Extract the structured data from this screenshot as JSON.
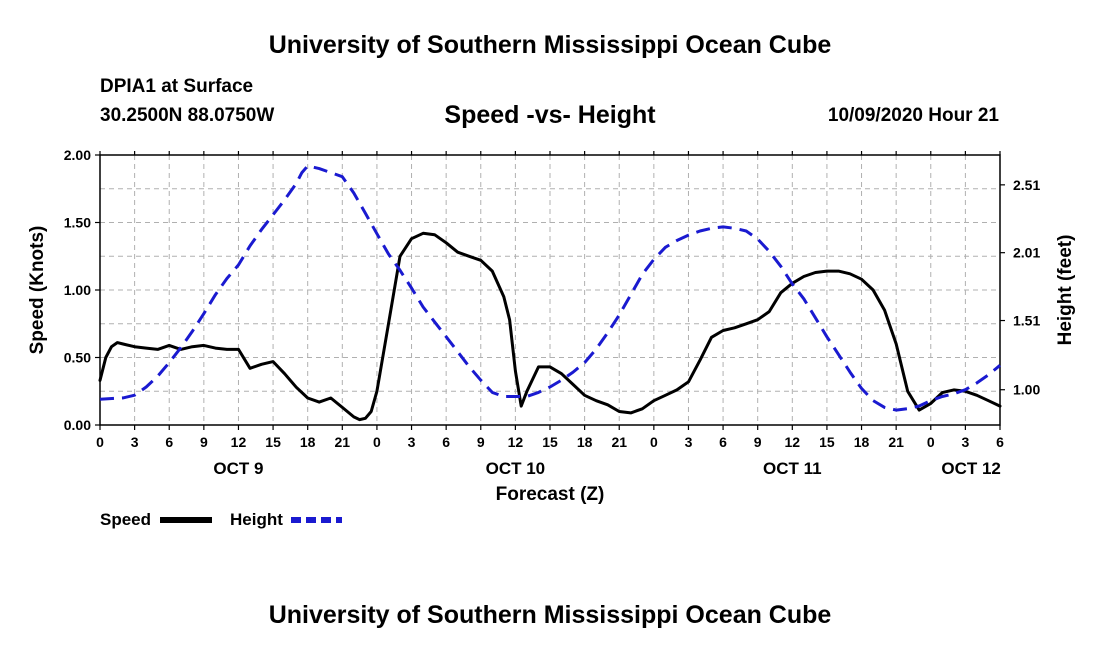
{
  "header": {
    "title": "University of Southern Mississippi Ocean Cube",
    "station": "DPIA1 at Surface",
    "coords": "30.2500N 88.0750W",
    "subtitle": "Speed -vs- Height",
    "datetime": "10/09/2020 Hour 21"
  },
  "footer": {
    "title": "University of Southern Mississippi Ocean Cube"
  },
  "legend": {
    "speed_label": "Speed",
    "height_label": "Height"
  },
  "colors": {
    "speed": "#000000",
    "height": "#1a1ad0",
    "grid": "#b0b0b0"
  },
  "chart_data": {
    "type": "line",
    "title": "Speed -vs- Height",
    "xlabel": "Forecast (Z)",
    "ylabel": "Speed (Knots)",
    "y2label": "Height (feet)",
    "xlim": [
      0,
      78
    ],
    "ylim": [
      0,
      2.0
    ],
    "y2lim": [
      0.74,
      2.73
    ],
    "x_tick_labels": [
      "0",
      "3",
      "6",
      "9",
      "12",
      "15",
      "18",
      "21",
      "0",
      "3",
      "6",
      "9",
      "12",
      "15",
      "18",
      "21",
      "0",
      "3",
      "6",
      "9",
      "12",
      "15",
      "18",
      "21",
      "0",
      "3",
      "6"
    ],
    "y_ticks": [
      "0.00",
      "0.50",
      "1.00",
      "1.50",
      "2.00"
    ],
    "y2_ticks": [
      "1.00",
      "1.51",
      "2.01",
      "2.51"
    ],
    "y2_tick_values": [
      1.0,
      1.51,
      2.01,
      2.51
    ],
    "day_labels": [
      {
        "label": "OCT 9",
        "x": 12
      },
      {
        "label": "OCT 10",
        "x": 36
      },
      {
        "label": "OCT 11",
        "x": 60
      },
      {
        "label": "OCT 12",
        "x": 75.5
      }
    ],
    "grid": true,
    "series": [
      {
        "name": "Speed",
        "axis": "left",
        "style": "solid",
        "x": [
          0,
          0.5,
          1,
          1.5,
          2,
          3,
          4,
          5,
          6,
          7,
          8,
          9,
          10,
          11,
          12,
          13,
          14,
          15,
          16,
          17,
          18,
          19,
          20,
          21,
          22,
          22.5,
          23,
          23.5,
          24,
          25,
          26,
          27,
          28,
          29,
          30,
          31,
          32,
          33,
          34,
          35,
          35.5,
          36,
          36.5,
          37,
          38,
          39,
          40,
          41,
          42,
          43,
          44,
          45,
          46,
          47,
          48,
          49,
          50,
          51,
          52,
          53,
          54,
          55,
          56,
          57,
          58,
          59,
          60,
          61,
          62,
          63,
          64,
          65,
          66,
          67,
          68,
          69,
          70,
          71,
          72,
          73,
          74,
          75,
          76,
          77,
          78
        ],
        "values": [
          0.33,
          0.5,
          0.58,
          0.61,
          0.6,
          0.58,
          0.57,
          0.56,
          0.59,
          0.56,
          0.58,
          0.59,
          0.57,
          0.56,
          0.56,
          0.42,
          0.45,
          0.47,
          0.38,
          0.28,
          0.2,
          0.17,
          0.2,
          0.13,
          0.06,
          0.04,
          0.05,
          0.1,
          0.25,
          0.75,
          1.25,
          1.38,
          1.42,
          1.41,
          1.35,
          1.28,
          1.25,
          1.22,
          1.14,
          0.95,
          0.78,
          0.4,
          0.14,
          0.25,
          0.43,
          0.43,
          0.38,
          0.3,
          0.22,
          0.18,
          0.15,
          0.1,
          0.09,
          0.12,
          0.18,
          0.22,
          0.26,
          0.32,
          0.48,
          0.65,
          0.7,
          0.72,
          0.75,
          0.78,
          0.84,
          0.98,
          1.05,
          1.1,
          1.13,
          1.14,
          1.14,
          1.12,
          1.08,
          1.0,
          0.85,
          0.6,
          0.25,
          0.11,
          0.16,
          0.24,
          0.26,
          0.25,
          0.22,
          0.18,
          0.14
        ]
      },
      {
        "name": "Height",
        "axis": "right",
        "style": "dashed",
        "x": [
          0,
          2,
          3,
          4,
          5,
          6,
          7,
          8,
          9,
          10,
          11,
          12,
          13,
          14,
          15,
          16,
          17,
          17.5,
          18,
          19,
          20,
          21,
          22,
          23,
          24,
          25,
          26,
          27,
          28,
          29,
          30,
          31,
          32,
          33,
          34,
          35,
          36,
          37,
          38,
          39,
          40,
          41,
          42,
          43,
          44,
          45,
          46,
          47,
          48,
          49,
          50,
          51,
          52,
          53,
          54,
          55,
          56,
          57,
          58,
          59,
          60,
          61,
          62,
          63,
          64,
          65,
          66,
          67,
          68,
          69,
          70,
          71,
          72,
          73,
          74,
          75,
          76,
          77,
          78
        ],
        "values": [
          0.93,
          0.94,
          0.96,
          1.02,
          1.1,
          1.2,
          1.31,
          1.43,
          1.56,
          1.7,
          1.82,
          1.92,
          2.06,
          2.18,
          2.29,
          2.4,
          2.52,
          2.6,
          2.65,
          2.63,
          2.6,
          2.57,
          2.45,
          2.3,
          2.15,
          2.0,
          1.88,
          1.75,
          1.61,
          1.5,
          1.39,
          1.28,
          1.17,
          1.07,
          0.98,
          0.95,
          0.95,
          0.95,
          0.98,
          1.02,
          1.07,
          1.13,
          1.2,
          1.3,
          1.42,
          1.55,
          1.7,
          1.85,
          1.96,
          2.05,
          2.1,
          2.14,
          2.17,
          2.19,
          2.2,
          2.19,
          2.17,
          2.11,
          2.02,
          1.91,
          1.78,
          1.67,
          1.53,
          1.39,
          1.26,
          1.13,
          1.01,
          0.92,
          0.87,
          0.85,
          0.86,
          0.88,
          0.92,
          0.95,
          0.97,
          1.0,
          1.05,
          1.11,
          1.18
        ]
      }
    ]
  }
}
